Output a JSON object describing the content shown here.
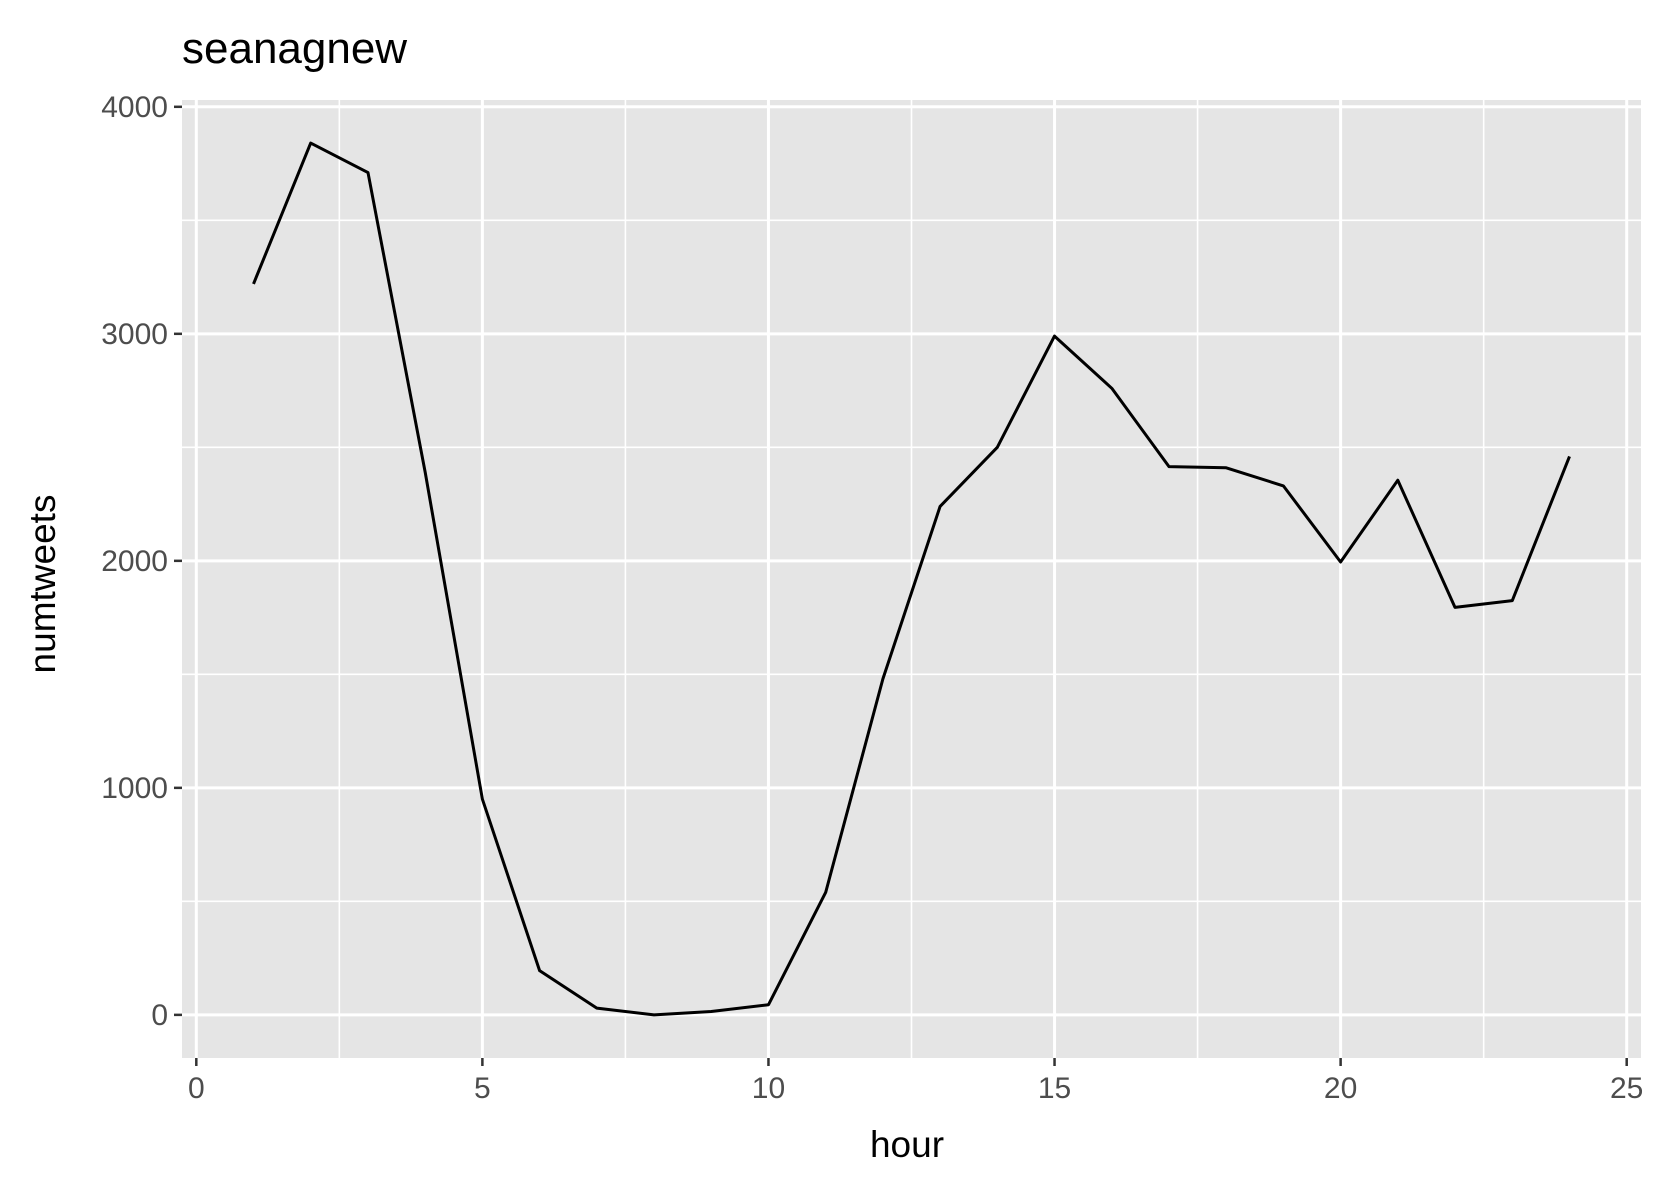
{
  "chart_data": {
    "type": "line",
    "title": "seanagnew",
    "xlabel": "hour",
    "ylabel": "numtweets",
    "xlim": [
      -0.25,
      25.25
    ],
    "ylim": [
      -190,
      4030
    ],
    "x_ticks": [
      0,
      5,
      10,
      15,
      20,
      25
    ],
    "y_ticks": [
      0,
      1000,
      2000,
      3000,
      4000
    ],
    "x_tick_labels": [
      "0",
      "5",
      "10",
      "15",
      "20",
      "25"
    ],
    "y_tick_labels": [
      "0",
      "1000",
      "2000",
      "3000",
      "4000"
    ],
    "grid": true,
    "panel_color": "#e5e5e5",
    "line_color": "#000000",
    "series": [
      {
        "x": [
          1,
          2,
          3,
          4,
          5,
          6,
          7,
          8,
          9,
          10,
          11,
          12,
          13,
          14,
          15,
          16,
          17,
          18,
          19,
          20,
          21,
          22,
          23,
          24
        ],
        "values": [
          3220,
          3840,
          3710,
          2390,
          950,
          195,
          30,
          0,
          15,
          45,
          540,
          1480,
          2240,
          2500,
          2990,
          2760,
          2415,
          2410,
          2330,
          1995,
          2355,
          1795,
          1825,
          2460
        ]
      }
    ]
  }
}
